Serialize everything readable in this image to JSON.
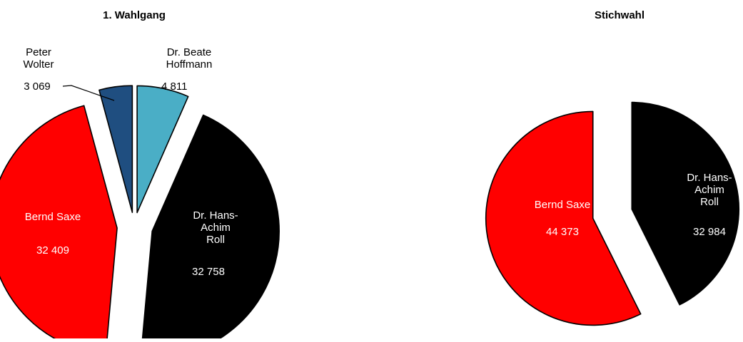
{
  "colors": {
    "red": "#ff0000",
    "black": "#000000",
    "teal": "#4aaec6",
    "navy": "#1f4e80",
    "outline": "#000000",
    "white_text": "#ffffff",
    "black_text": "#000000"
  },
  "chart_data": [
    {
      "type": "pie",
      "title": "1. Wahlgang",
      "exploded": true,
      "slices": [
        {
          "name": "Dr. Beate Hoffmann",
          "label_lines": [
            "Dr. Beate",
            "Hoffmann"
          ],
          "value_label": "4 811",
          "value": 4811,
          "color": "#4aaec6",
          "label_color": "#000000"
        },
        {
          "name": "Dr. Hans-Achim Roll",
          "label_lines": [
            "Dr. Hans-",
            "Achim",
            "Roll"
          ],
          "value_label": "32 758",
          "value": 32758,
          "color": "#000000",
          "label_color": "#ffffff"
        },
        {
          "name": "Bernd Saxe",
          "label_lines": [
            "Bernd Saxe"
          ],
          "value_label": "32 409",
          "value": 32409,
          "color": "#ff0000",
          "label_color": "#ffffff"
        },
        {
          "name": "Peter Wolter",
          "label_lines": [
            "Peter",
            "Wolter"
          ],
          "value_label": "3 069",
          "value": 3069,
          "color": "#1f4e80",
          "label_color": "#000000"
        }
      ]
    },
    {
      "type": "pie",
      "title": "Stichwahl",
      "exploded": true,
      "slices": [
        {
          "name": "Dr. Hans-Achim Roll",
          "label_lines": [
            "Dr. Hans-",
            "Achim",
            "Roll"
          ],
          "value_label": "32 984",
          "value": 32984,
          "color": "#000000",
          "label_color": "#ffffff"
        },
        {
          "name": "Bernd Saxe",
          "label_lines": [
            "Bernd Saxe"
          ],
          "value_label": "44 373",
          "value": 44373,
          "color": "#ff0000",
          "label_color": "#ffffff"
        }
      ]
    }
  ]
}
